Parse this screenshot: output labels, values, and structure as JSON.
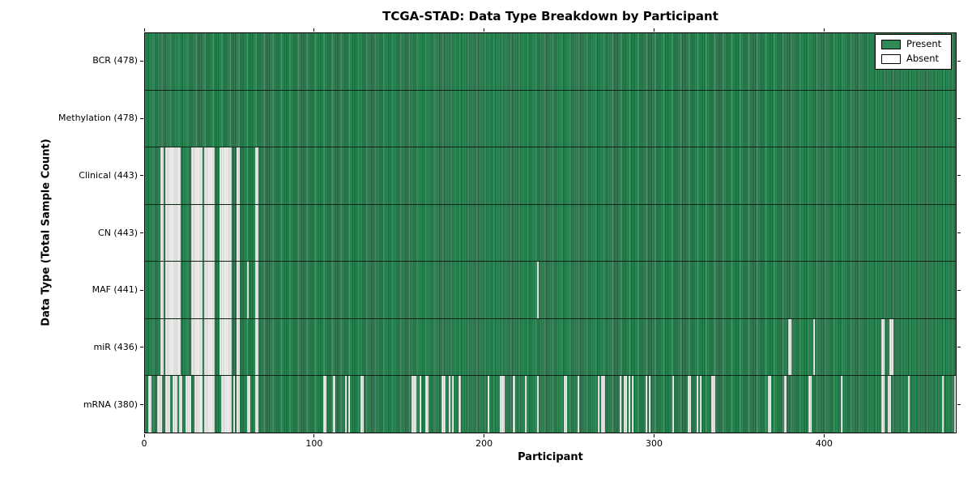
{
  "chart_data": {
    "type": "heatmap",
    "title": "TCGA-STAD: Data Type Breakdown by Participant",
    "xlabel": "Participant",
    "ylabel": "Data Type (Total Sample Count)",
    "n_participants": 478,
    "x_ticks": [
      0,
      100,
      200,
      300,
      400
    ],
    "xlim": [
      0,
      478
    ],
    "grid": false,
    "legend_position": "upper right",
    "legend": [
      {
        "label": "Present",
        "color": "#2e8b57"
      },
      {
        "label": "Absent",
        "color": "#ffffff"
      }
    ],
    "colors": {
      "present_fill": "#2e8b57",
      "present_edge_dark": "rgba(0,0,0,0.30)",
      "present_edge_light": "rgba(255,255,255,0.18)",
      "absent_fill": "#f2f2f0",
      "absent_edge": "rgba(0,0,0,0.16)",
      "axis": "#000000"
    },
    "rows": [
      {
        "name": "BCR",
        "label": "BCR (478)",
        "total": 478,
        "absent_runs": []
      },
      {
        "name": "Methylation",
        "label": "Methylation (478)",
        "total": 478,
        "absent_runs": []
      },
      {
        "name": "Clinical",
        "label": "Clinical (443)",
        "total": 443,
        "absent_runs": [
          [
            9,
            10
          ],
          [
            12,
            20
          ],
          [
            27,
            33
          ],
          [
            35,
            40
          ],
          [
            44,
            50
          ],
          [
            54,
            55
          ],
          [
            65,
            66
          ]
        ]
      },
      {
        "name": "CN",
        "label": "CN (443)",
        "total": 443,
        "absent_runs": [
          [
            9,
            10
          ],
          [
            12,
            20
          ],
          [
            27,
            33
          ],
          [
            35,
            40
          ],
          [
            44,
            50
          ],
          [
            54,
            55
          ],
          [
            65,
            66
          ]
        ]
      },
      {
        "name": "MAF",
        "label": "MAF (441)",
        "total": 441,
        "absent_runs": [
          [
            9,
            10
          ],
          [
            12,
            20
          ],
          [
            27,
            33
          ],
          [
            35,
            40
          ],
          [
            44,
            50
          ],
          [
            54,
            55
          ],
          [
            60,
            60
          ],
          [
            65,
            66
          ],
          [
            231,
            231
          ]
        ]
      },
      {
        "name": "miR",
        "label": "miR (436)",
        "total": 436,
        "absent_runs": [
          [
            9,
            10
          ],
          [
            12,
            20
          ],
          [
            27,
            33
          ],
          [
            35,
            40
          ],
          [
            44,
            50
          ],
          [
            54,
            55
          ],
          [
            65,
            66
          ],
          [
            379,
            380
          ],
          [
            394,
            394
          ],
          [
            434,
            435
          ],
          [
            439,
            440
          ]
        ]
      },
      {
        "name": "mRNA",
        "label": "mRNA (380)",
        "total": 380,
        "absent_runs": [
          [
            2,
            3
          ],
          [
            7,
            9
          ],
          [
            12,
            14
          ],
          [
            16,
            18
          ],
          [
            20,
            21
          ],
          [
            24,
            26
          ],
          [
            29,
            33
          ],
          [
            35,
            40
          ],
          [
            45,
            50
          ],
          [
            52,
            52
          ],
          [
            54,
            55
          ],
          [
            60,
            61
          ],
          [
            65,
            66
          ],
          [
            105,
            106
          ],
          [
            111,
            111
          ],
          [
            118,
            118
          ],
          [
            120,
            120
          ],
          [
            127,
            128
          ],
          [
            157,
            159
          ],
          [
            162,
            162
          ],
          [
            165,
            166
          ],
          [
            175,
            176
          ],
          [
            179,
            179
          ],
          [
            181,
            181
          ],
          [
            185,
            185
          ],
          [
            202,
            202
          ],
          [
            209,
            211
          ],
          [
            217,
            217
          ],
          [
            224,
            224
          ],
          [
            231,
            231
          ],
          [
            247,
            248
          ],
          [
            255,
            255
          ],
          [
            267,
            267
          ],
          [
            269,
            270
          ],
          [
            280,
            280
          ],
          [
            282,
            283
          ],
          [
            285,
            285
          ],
          [
            287,
            287
          ],
          [
            295,
            295
          ],
          [
            297,
            297
          ],
          [
            311,
            311
          ],
          [
            320,
            321
          ],
          [
            325,
            325
          ],
          [
            327,
            327
          ],
          [
            334,
            335
          ],
          [
            367,
            368
          ],
          [
            377,
            377
          ],
          [
            391,
            392
          ],
          [
            410,
            410
          ],
          [
            434,
            435
          ],
          [
            438,
            439
          ],
          [
            450,
            450
          ],
          [
            470,
            470
          ],
          [
            477,
            477
          ]
        ]
      }
    ]
  }
}
